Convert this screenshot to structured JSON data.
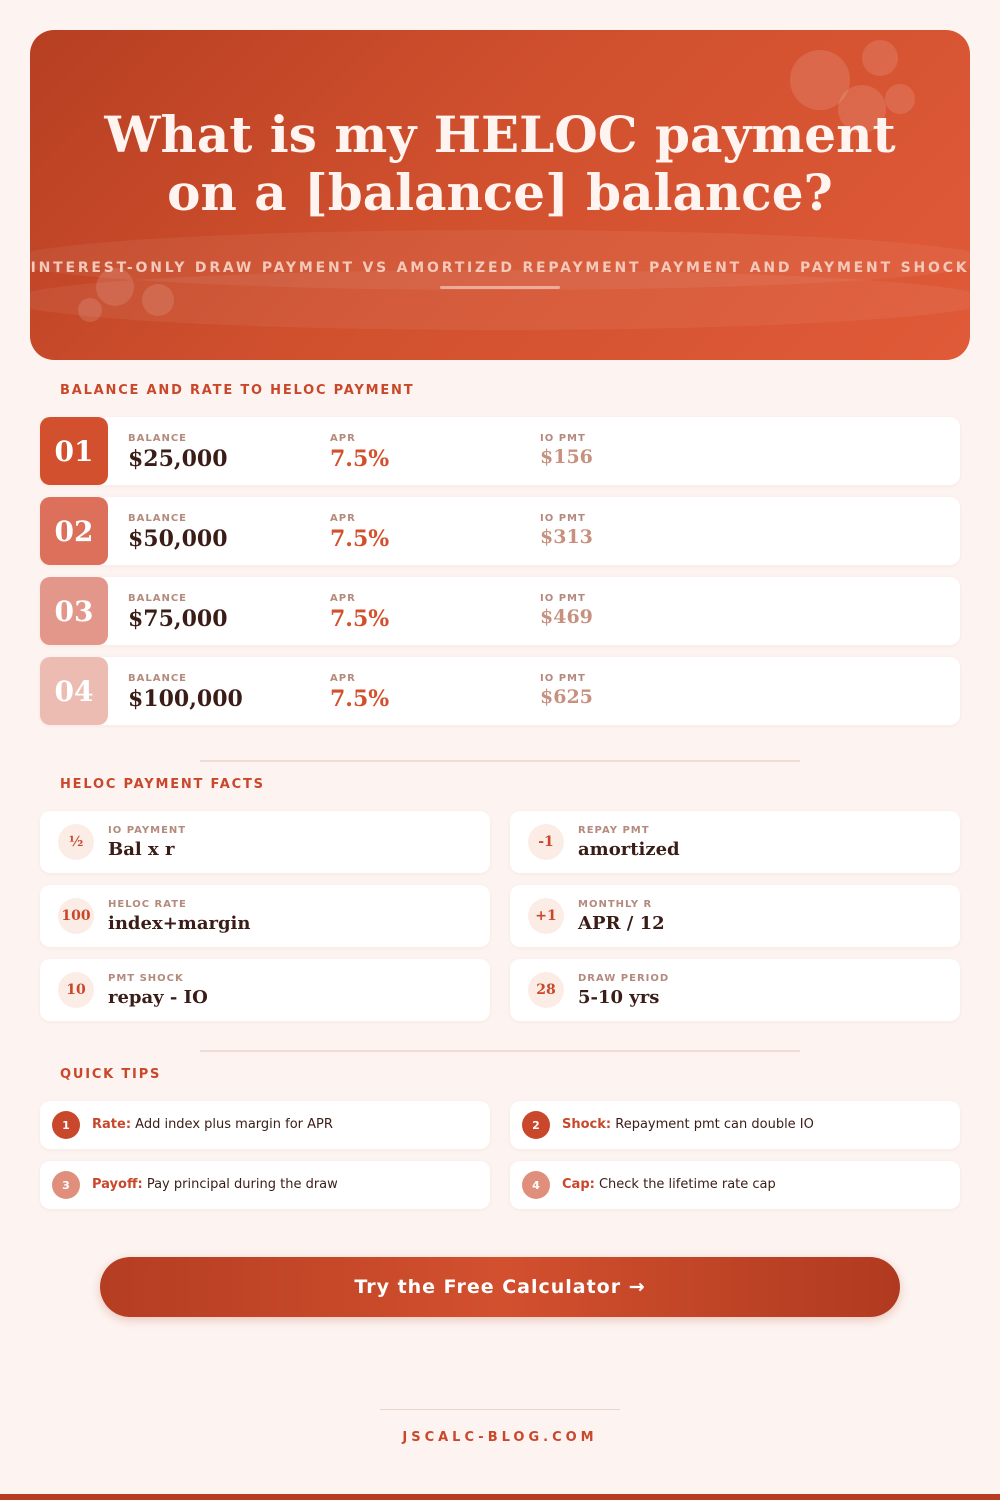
{
  "hero": {
    "title_line1": "What is my HELOC payment",
    "title_line2": "on a [balance] balance?",
    "subtitle": "INTEREST-ONLY DRAW PAYMENT VS AMORTIZED REPAYMENT PAYMENT AND PAYMENT SHOCK"
  },
  "table_section": {
    "title": "BALANCE AND RATE TO HELOC PAYMENT",
    "rows": [
      {
        "num": "01",
        "balance_label": "BALANCE",
        "balance": "$25,000",
        "apr_label": "APR",
        "apr": "7.5%",
        "pmt_label": "IO PMT",
        "pmt": "$156",
        "badge_color": "#d2502e"
      },
      {
        "num": "02",
        "balance_label": "BALANCE",
        "balance": "$50,000",
        "apr_label": "APR",
        "apr": "7.5%",
        "pmt_label": "IO PMT",
        "pmt": "$313",
        "badge_color": "#dc705a"
      },
      {
        "num": "03",
        "balance_label": "BALANCE",
        "balance": "$75,000",
        "apr_label": "APR",
        "apr": "7.5%",
        "pmt_label": "IO PMT",
        "pmt": "$469",
        "badge_color": "#e3978a"
      },
      {
        "num": "04",
        "balance_label": "BALANCE",
        "balance": "$100,000",
        "apr_label": "APR",
        "apr": "7.5%",
        "pmt_label": "IO PMT",
        "pmt": "$625",
        "badge_color": "#ecbcb2"
      }
    ]
  },
  "facts_section": {
    "title": "HELOC PAYMENT FACTS",
    "facts": [
      {
        "badge": "½",
        "label": "IO PAYMENT",
        "value": "Bal x r"
      },
      {
        "badge": "-1",
        "label": "REPAY PMT",
        "value": "amortized"
      },
      {
        "badge": "100",
        "label": "HELOC RATE",
        "value": "index+margin"
      },
      {
        "badge": "+1",
        "label": "MONTHLY R",
        "value": "APR / 12"
      },
      {
        "badge": "10",
        "label": "PMT SHOCK",
        "value": "repay - IO"
      },
      {
        "badge": "28",
        "label": "DRAW PERIOD",
        "value": "5-10 yrs"
      }
    ]
  },
  "tips_section": {
    "title": "QUICK TIPS",
    "tips": [
      {
        "num": "1",
        "key": "Rate:",
        "text": "Add index plus margin for APR",
        "color": "#c9472a"
      },
      {
        "num": "2",
        "key": "Shock:",
        "text": "Repayment pmt can double IO",
        "color": "#c9472a"
      },
      {
        "num": "3",
        "key": "Payoff:",
        "text": "Pay principal during the draw",
        "color": "#e08f7c"
      },
      {
        "num": "4",
        "key": "Cap:",
        "text": "Check the lifetime rate cap",
        "color": "#e08f7c"
      }
    ]
  },
  "cta": {
    "label": "Try the Free Calculator →"
  },
  "footer": {
    "site": "JSCALC-BLOG.COM"
  },
  "colors": {
    "accent": "#c9472a",
    "background": "#fdf4f1",
    "text_dark": "#3a1d16",
    "muted_label": "#b48a7d"
  }
}
